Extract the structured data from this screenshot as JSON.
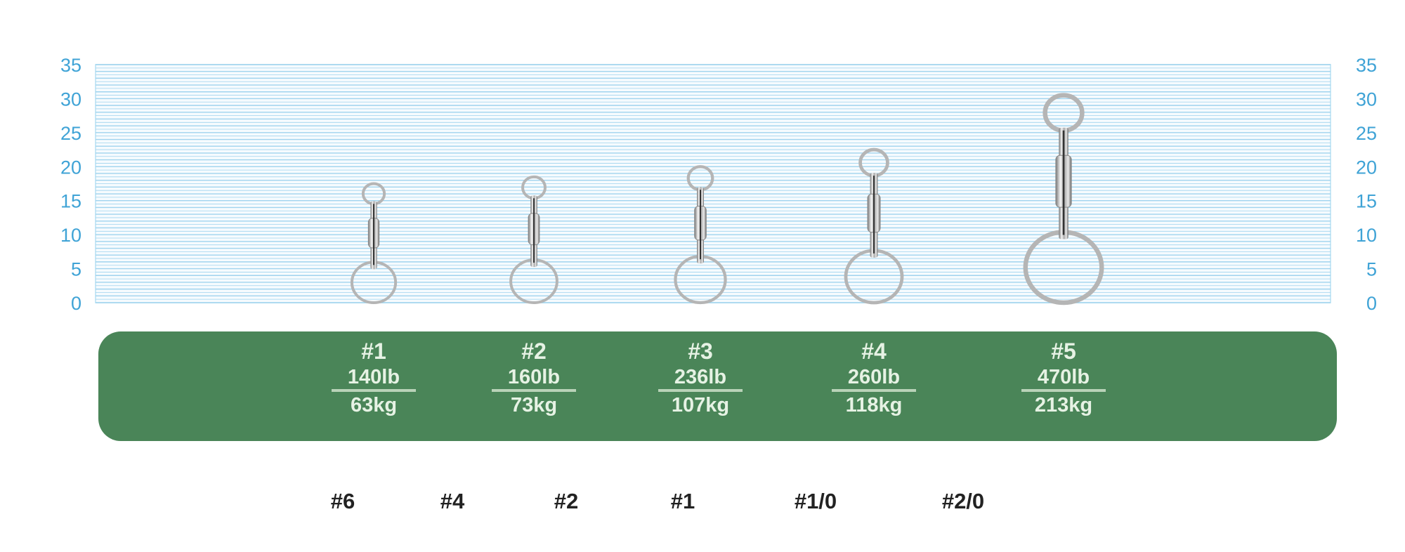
{
  "chart_data": {
    "type": "bar",
    "ylim": [
      0,
      35
    ],
    "yticks": [
      "0",
      "5",
      "10",
      "15",
      "20",
      "25",
      "30",
      "35"
    ],
    "axes": "left-and-right",
    "grid": true,
    "grid_color": "#9fd3ee",
    "categories": [
      "#1",
      "#2",
      "#3",
      "#4",
      "#5"
    ],
    "values": [
      17.5,
      18.5,
      20,
      22.5,
      30.5
    ],
    "mark": "swivel-photo",
    "labels": [
      {
        "size": "#1",
        "lb": "140lb",
        "kg": "63kg"
      },
      {
        "size": "#2",
        "lb": "160lb",
        "kg": "73kg"
      },
      {
        "size": "#3",
        "lb": "236lb",
        "kg": "107kg"
      },
      {
        "size": "#4",
        "lb": "260lb",
        "kg": "118kg"
      },
      {
        "size": "#5",
        "lb": "470lb",
        "kg": "213kg"
      }
    ],
    "band_color": "#4a8558",
    "hook_sizes": [
      "#6",
      "#4",
      "#2",
      "#1",
      "#1/0",
      "#2/0"
    ]
  }
}
